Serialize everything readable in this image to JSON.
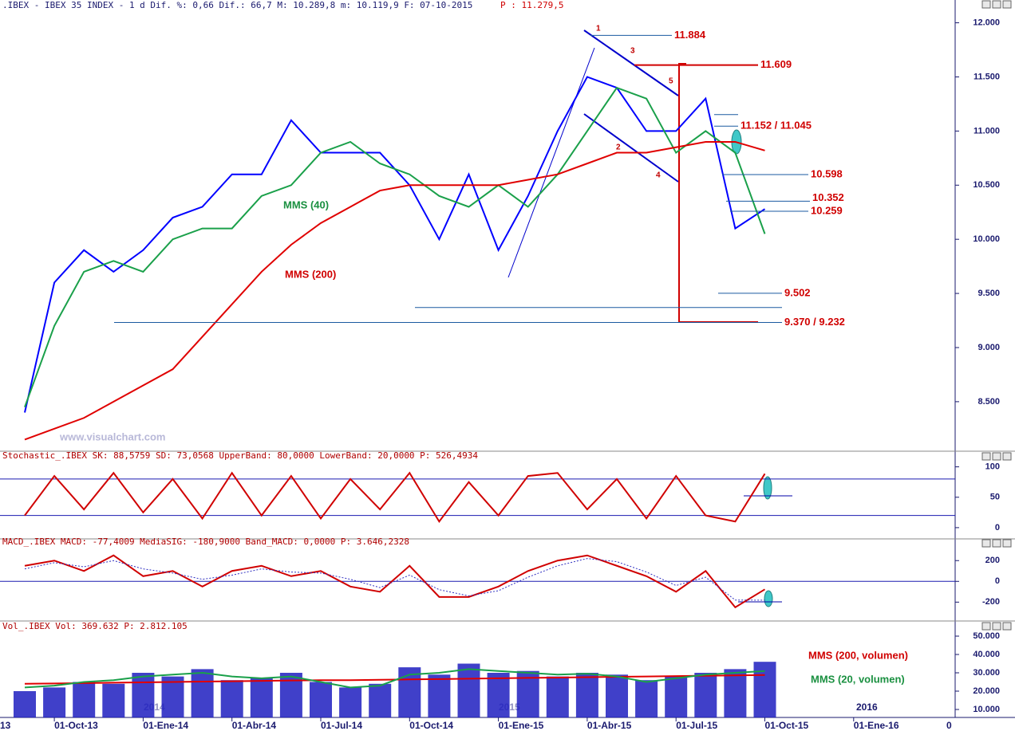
{
  "chart_data": [
    {
      "type": "line",
      "title": ".IBEX - IBEX 35 INDEX -  1 d Dif. %: 0,66 Dif.: 66,7 M: 10.289,8 m: 10.119,9 F: 07-10-2015",
      "subtitle": "P : 11.279,5",
      "watermark": "www.visualchart.com",
      "ylim": [
        8050,
        12100
      ],
      "yticks": [
        {
          "value": 8500,
          "label": "8.500"
        },
        {
          "value": 9000,
          "label": "9.000"
        },
        {
          "value": 9500,
          "label": "9.500"
        },
        {
          "value": 10000,
          "label": "10.000"
        },
        {
          "value": 10500,
          "label": "10.500"
        },
        {
          "value": 11000,
          "label": "11.000"
        },
        {
          "value": 11500,
          "label": "11.500"
        },
        {
          "value": 12000,
          "label": "12.000"
        }
      ],
      "series": [
        {
          "name": "IBEX 35",
          "color": "#0000ff",
          "values": [
            8400,
            9600,
            9900,
            9700,
            9900,
            10200,
            10300,
            10600,
            10600,
            11100,
            10800,
            10800,
            10800,
            10500,
            10000,
            10600,
            9900,
            10400,
            11000,
            11500,
            11400,
            11000,
            11000,
            11300,
            10100,
            10280,
            null,
            null,
            null,
            null
          ]
        },
        {
          "name": "MMS (40)",
          "color": "#1aa04a",
          "values": [
            8450,
            9200,
            9700,
            9800,
            9700,
            10000,
            10100,
            10100,
            10400,
            10500,
            10800,
            10900,
            10700,
            10600,
            10400,
            10300,
            10500,
            10300,
            10600,
            11000,
            11400,
            11300,
            10800,
            11000,
            10800,
            10050,
            null,
            null,
            null,
            null
          ]
        },
        {
          "name": "MMS (200)",
          "color": "#e00000",
          "values": [
            8150,
            8250,
            8350,
            8500,
            8650,
            8800,
            9100,
            9400,
            9700,
            9950,
            10150,
            10300,
            10450,
            10500,
            10500,
            10500,
            10500,
            10550,
            10600,
            10700,
            10800,
            10800,
            10850,
            10900,
            10900,
            10820,
            null,
            null,
            null,
            null
          ]
        }
      ],
      "annotations": [
        {
          "label": "11.884",
          "values": [
            11884
          ]
        },
        {
          "label": "11.609",
          "values": [
            11609
          ]
        },
        {
          "label": "11.152 / 11.045",
          "values": [
            11152,
            11045
          ]
        },
        {
          "label": "10.598",
          "values": [
            10598
          ]
        },
        {
          "label": "10.352",
          "values": [
            10352
          ]
        },
        {
          "label": "10.259",
          "values": [
            10259
          ]
        },
        {
          "label": "9.502",
          "values": [
            9502
          ]
        },
        {
          "label": "9.370 / 9.232",
          "values": [
            9370,
            9232
          ]
        }
      ],
      "wave_labels": [
        "1",
        "2",
        "3",
        "4",
        "5"
      ]
    },
    {
      "type": "line",
      "title": "Stochastic_.IBEX SK: 88,5759 SD: 73,0568 UpperBand: 80,0000 LowerBand: 20,0000 P: 526,4934",
      "ylim": [
        -8,
        110
      ],
      "yticks": [
        0,
        50,
        100
      ],
      "bands": [
        80,
        20
      ],
      "series": [
        {
          "name": "SK",
          "color": "#d00000",
          "values": [
            20,
            85,
            30,
            90,
            25,
            80,
            15,
            90,
            20,
            85,
            15,
            80,
            30,
            90,
            10,
            75,
            20,
            85,
            90,
            30,
            80,
            15,
            85,
            20,
            10,
            88.6,
            null,
            null,
            null,
            null
          ]
        }
      ]
    },
    {
      "type": "line",
      "title": "MACD_.IBEX MACD: -77,4009 MediaSIG: -180,9000 Band_MACD: 0,0000 P: 3.646,2328",
      "ylim": [
        -374,
        317
      ],
      "yticks": [
        -200,
        0,
        200
      ],
      "bands": [
        0
      ],
      "series": [
        {
          "name": "MACD",
          "color": "#d00000",
          "values": [
            150,
            200,
            100,
            250,
            50,
            100,
            -50,
            100,
            150,
            50,
            100,
            -50,
            -100,
            150,
            -150,
            -150,
            -50,
            100,
            200,
            250,
            150,
            50,
            -100,
            100,
            -250,
            -77,
            null,
            null,
            null,
            null
          ]
        },
        {
          "name": "MediaSIG",
          "color": "#3030c0",
          "values": [
            120,
            180,
            140,
            200,
            120,
            80,
            20,
            60,
            120,
            90,
            80,
            20,
            -60,
            60,
            -80,
            -140,
            -90,
            40,
            150,
            220,
            190,
            90,
            -40,
            40,
            -180,
            -181,
            null,
            null,
            null,
            null
          ]
        }
      ]
    },
    {
      "type": "bar",
      "title": "Vol_.IBEX Vol: 369.632 P: 2.812.105",
      "edge_label": "13",
      "year_labels": [
        "2014",
        "2015",
        "2016"
      ],
      "corner_label": "0",
      "categories": [
        null,
        "01-Oct-13",
        null,
        null,
        "01-Ene-14",
        null,
        null,
        "01-Abr-14",
        null,
        null,
        "01-Jul-14",
        null,
        null,
        "01-Oct-14",
        null,
        null,
        "01-Ene-15",
        null,
        null,
        "01-Abr-15",
        null,
        null,
        "01-Jul-15",
        null,
        null,
        "01-Oct-15",
        null,
        null,
        "01-Ene-16",
        null
      ],
      "ylim": [
        5650,
        51300
      ],
      "yticks": [
        {
          "value": 10000,
          "label": "10.000"
        },
        {
          "value": 20000,
          "label": "20.000"
        },
        {
          "value": 30000,
          "label": "30.000"
        },
        {
          "value": 40000,
          "label": "40.000"
        },
        {
          "value": 50000,
          "label": "50.000"
        }
      ],
      "color": "#1f1fc0",
      "values": [
        20000,
        22000,
        25000,
        24000,
        30000,
        28000,
        32000,
        26000,
        27000,
        30000,
        25000,
        22000,
        24000,
        33000,
        29000,
        35000,
        30000,
        31000,
        28000,
        30000,
        29000,
        26000,
        28000,
        30000,
        32000,
        36000,
        null,
        null,
        null,
        null
      ],
      "series": [
        {
          "name": "MMS (200, volumen)",
          "color": "#e00000",
          "values": [
            24000,
            24200,
            24400,
            24600,
            24800,
            25000,
            25200,
            25400,
            25600,
            25800,
            26000,
            26000,
            26200,
            26400,
            26600,
            26800,
            27000,
            27200,
            27400,
            27600,
            27800,
            28000,
            28200,
            28400,
            28600,
            28800,
            null,
            null,
            null,
            null
          ]
        },
        {
          "name": "MMS (20, volumen)",
          "color": "#1aa04a",
          "values": [
            22000,
            23000,
            25000,
            26000,
            28000,
            29000,
            30000,
            28000,
            27000,
            28000,
            25000,
            22000,
            23000,
            29000,
            30000,
            32000,
            31000,
            30000,
            29000,
            29500,
            28000,
            25000,
            27000,
            29000,
            30000,
            31000,
            null,
            null,
            null,
            null
          ]
        }
      ]
    }
  ]
}
